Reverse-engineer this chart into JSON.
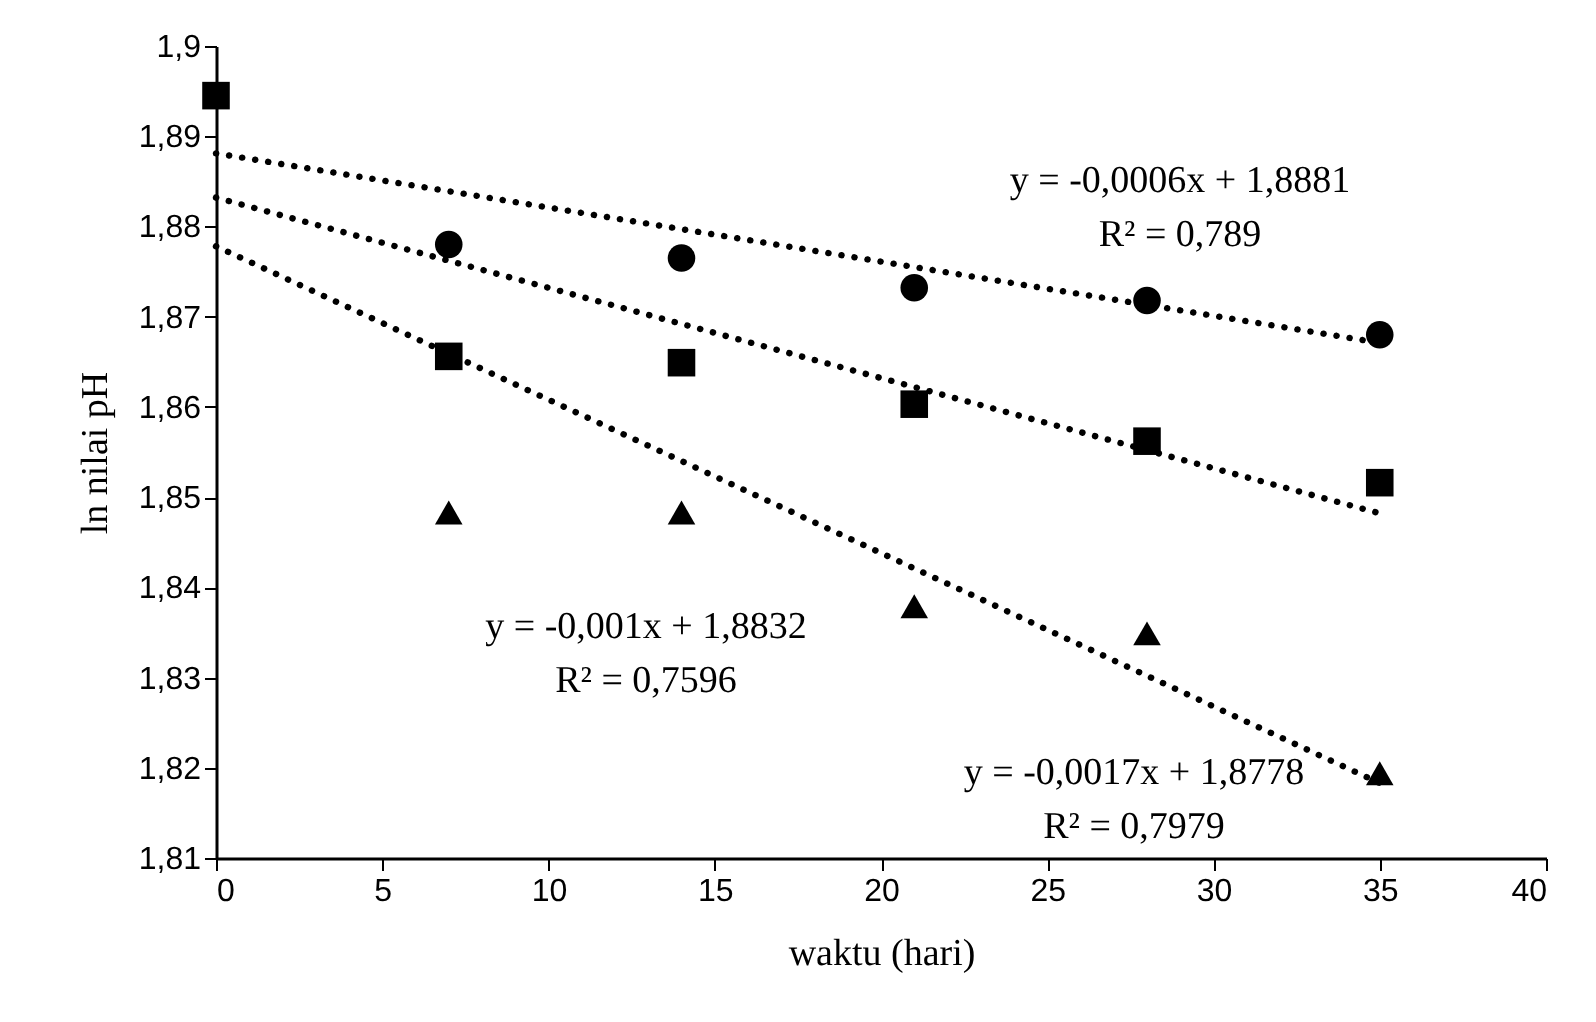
{
  "chart_data": {
    "type": "scatter",
    "xlabel": "waktu (hari)",
    "ylabel": "ln nilai pH",
    "xlim": [
      0,
      40
    ],
    "xticks": [
      0,
      5,
      10,
      15,
      20,
      25,
      30,
      35,
      40
    ],
    "ylim": [
      1.81,
      1.9
    ],
    "yticks": [
      {
        "value": 1.81,
        "label": "1,81"
      },
      {
        "value": 1.82,
        "label": "1,82"
      },
      {
        "value": 1.83,
        "label": "1,83"
      },
      {
        "value": 1.84,
        "label": "1,84"
      },
      {
        "value": 1.85,
        "label": "1,85"
      },
      {
        "value": 1.86,
        "label": "1,86"
      },
      {
        "value": 1.87,
        "label": "1,87"
      },
      {
        "value": 1.88,
        "label": "1,88"
      },
      {
        "value": 1.89,
        "label": "1,89"
      },
      {
        "value": 1.9,
        "label": "1,9"
      }
    ],
    "series": [
      {
        "marker": "circle",
        "color": "#000000",
        "x": [
          7,
          14,
          21,
          28,
          35
        ],
        "values": [
          1.878,
          1.8765,
          1.8732,
          1.8718,
          1.868
        ]
      },
      {
        "marker": "square",
        "color": "#000000",
        "x": [
          0,
          7,
          14,
          21,
          28,
          35
        ],
        "values": [
          1.8945,
          1.8656,
          1.8649,
          1.8603,
          1.8562,
          1.8516
        ]
      },
      {
        "marker": "triangle",
        "color": "#000000",
        "x": [
          7,
          14,
          21,
          28,
          35
        ],
        "values": [
          1.8483,
          1.8483,
          1.8379,
          1.8349,
          1.8194
        ]
      },
      {
        "type": "line",
        "line_style": "dotted",
        "color": "#000000",
        "x": [
          0,
          35
        ],
        "values": [
          1.8881,
          1.8671
        ]
      },
      {
        "type": "line",
        "line_style": "dotted",
        "color": "#000000",
        "x": [
          0,
          35
        ],
        "values": [
          1.8832,
          1.8482
        ]
      },
      {
        "type": "line",
        "line_style": "dotted",
        "color": "#000000",
        "x": [
          0,
          35
        ],
        "values": [
          1.8778,
          1.8183
        ]
      }
    ],
    "annotations": [
      "y = -0,0006x + 1,8881",
      "R² = 0,789",
      "y = -0,001x + 1,8832",
      "R² = 0,7596",
      "y = -0,0017x + 1,8778",
      "R² = 0,7979"
    ]
  }
}
